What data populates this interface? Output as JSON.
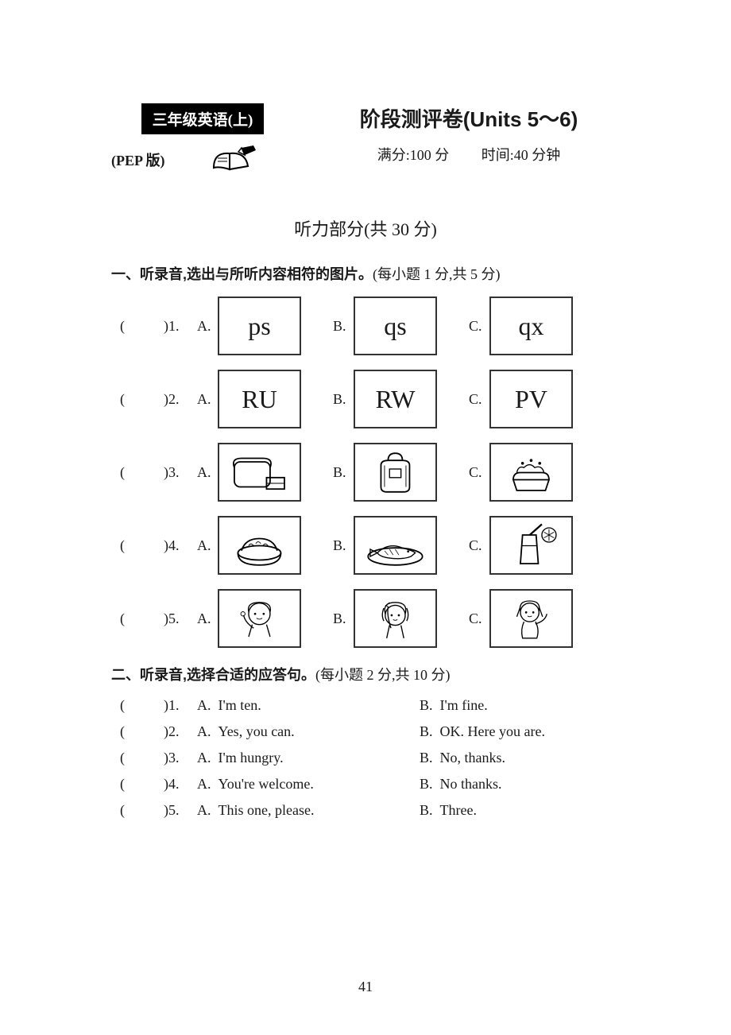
{
  "header": {
    "badge": "三年级英语(上)",
    "pep": "(PEP 版)",
    "title": "阶段测评卷(Units 5～6)",
    "score_label": "满分:100 分",
    "time_label": "时间:40 分钟"
  },
  "listening_title": "听力部分(共 30 分)",
  "section1": {
    "title": "一、听录音,选出与所听内容相符的图片。",
    "note": "(每小题 1 分,共 5 分)",
    "rows": [
      {
        "num": ")1.",
        "type": "text",
        "a": "ps",
        "b": "qs",
        "c": "qx"
      },
      {
        "num": ")2.",
        "type": "text",
        "a": "RU",
        "b": "RW",
        "c": "PV"
      },
      {
        "num": ")3.",
        "type": "img",
        "icons": [
          "bread",
          "bag",
          "cake"
        ]
      },
      {
        "num": ")4.",
        "type": "img",
        "icons": [
          "rice",
          "fish",
          "juice"
        ]
      },
      {
        "num": ")5.",
        "type": "img",
        "icons": [
          "girl1",
          "girl2",
          "girl3"
        ]
      }
    ],
    "labels": {
      "a": "A.",
      "b": "B.",
      "c": "C."
    }
  },
  "section2": {
    "title": "二、听录音,选择合适的应答句。",
    "note": "(每小题 2 分,共 10 分)",
    "labels": {
      "a": "A.",
      "b": "B."
    },
    "rows": [
      {
        "num": ")1.",
        "a": "I'm ten.",
        "b": "I'm fine."
      },
      {
        "num": ")2.",
        "a": "Yes, you can.",
        "b": "OK. Here you are."
      },
      {
        "num": ")3.",
        "a": "I'm hungry.",
        "b": "No, thanks."
      },
      {
        "num": ")4.",
        "a": "You're welcome.",
        "b": "No thanks."
      },
      {
        "num": ")5.",
        "a": "This one, please.",
        "b": "Three."
      }
    ]
  },
  "page_number": "41",
  "paren_open": "(",
  "paren_close": ""
}
